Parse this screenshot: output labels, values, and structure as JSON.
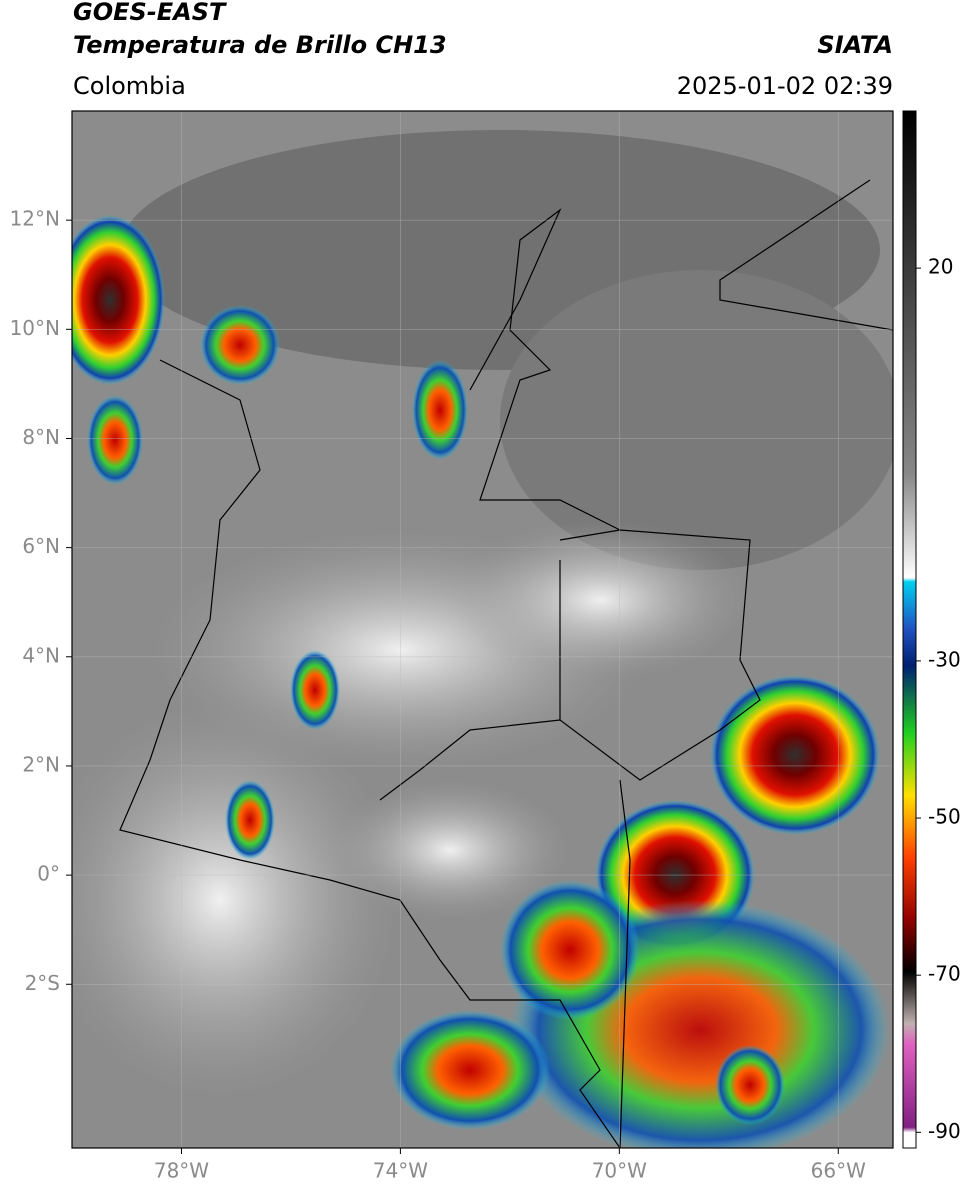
{
  "header": {
    "title": "GOES-EAST",
    "subtitle": "Temperatura de Brillo CH13",
    "region": "Colombia",
    "source": "SIATA",
    "datetime": "2025-01-02 02:39"
  },
  "map": {
    "xlim": [
      -80,
      -65
    ],
    "ylim": [
      -5,
      14
    ],
    "xticks": [
      {
        "value": -78,
        "label": "78°W"
      },
      {
        "value": -74,
        "label": "74°W"
      },
      {
        "value": -70,
        "label": "70°W"
      },
      {
        "value": -66,
        "label": "66°W"
      }
    ],
    "yticks": [
      {
        "value": 12,
        "label": "12°N"
      },
      {
        "value": 10,
        "label": "10°N"
      },
      {
        "value": 8,
        "label": "8°N"
      },
      {
        "value": 6,
        "label": "6°N"
      },
      {
        "value": 4,
        "label": "4°N"
      },
      {
        "value": 2,
        "label": "2°N"
      },
      {
        "value": 0,
        "label": "0°"
      },
      {
        "value": -2,
        "label": "2°S"
      }
    ],
    "grid": true
  },
  "colorbar": {
    "lim": [
      -92,
      40
    ],
    "ticks": [
      20,
      -30,
      -50,
      -70,
      -90
    ]
  }
}
